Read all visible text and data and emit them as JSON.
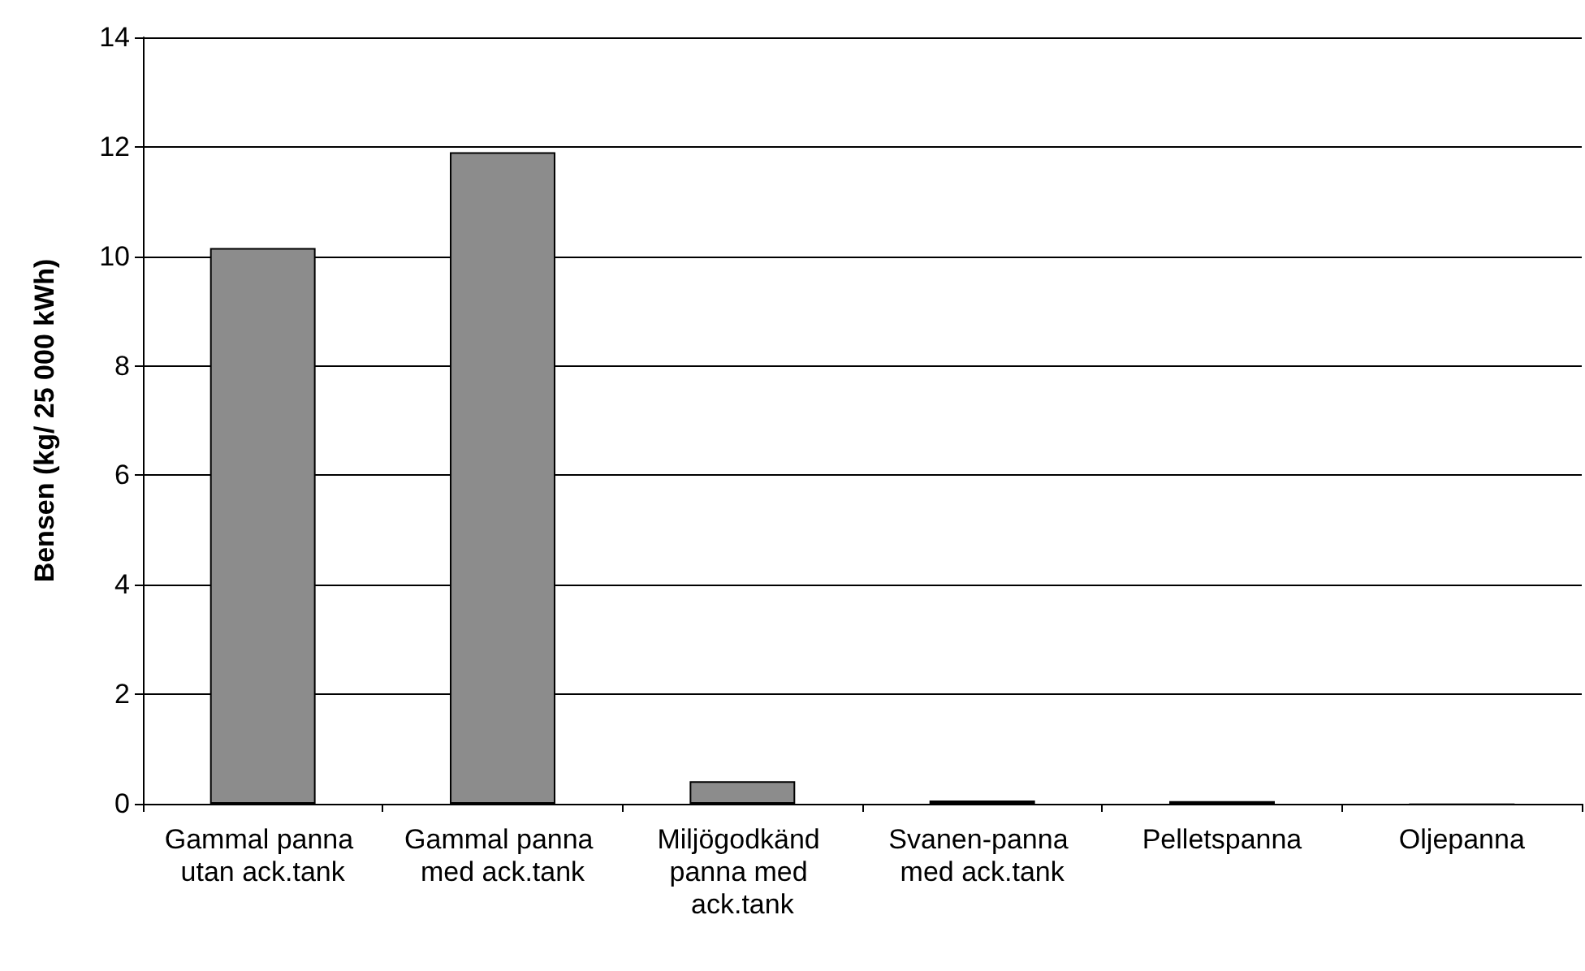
{
  "chart_data": {
    "type": "bar",
    "ylabel": "Bensen (kg/ 25 000 kWh)",
    "categories": [
      "Gammal panna utan ack.tank",
      "Gammal panna med ack.tank",
      "Miljögodkänd panna med ack.tank",
      "Svanen-panna med ack.tank",
      "Pelletspanna",
      "Oljepanna"
    ],
    "values": [
      10.15,
      11.9,
      0.41,
      0.06,
      0.05,
      0.01
    ],
    "color": "#8c8c8c",
    "ylim": [
      0,
      14
    ],
    "yticks": [
      0,
      2,
      4,
      6,
      8,
      10,
      12,
      14
    ],
    "grid": "y"
  }
}
